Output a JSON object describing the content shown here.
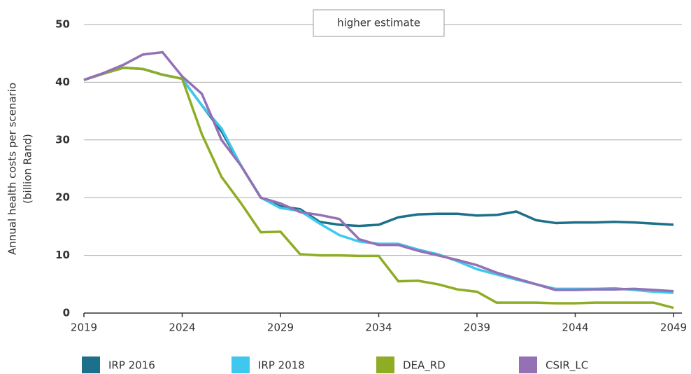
{
  "chart_data": {
    "type": "line",
    "ylabel": [
      "Annual health costs per scenario",
      "(billion Rand)"
    ],
    "annotation": "higher estimate",
    "x": [
      2019,
      2020,
      2021,
      2022,
      2023,
      2024,
      2025,
      2026,
      2027,
      2028,
      2029,
      2030,
      2031,
      2032,
      2033,
      2034,
      2035,
      2036,
      2037,
      2038,
      2039,
      2040,
      2041,
      2042,
      2043,
      2044,
      2045,
      2046,
      2047,
      2048,
      2049
    ],
    "xlim": [
      2019,
      2049
    ],
    "xticks": [
      2019,
      2024,
      2029,
      2034,
      2039,
      2044,
      2049
    ],
    "ylim": [
      0,
      50
    ],
    "yticks": [
      0,
      10,
      20,
      30,
      40,
      50
    ],
    "grid": true,
    "legend": "bottom",
    "series": [
      {
        "name": "IRP 2016",
        "color": "#1d7089",
        "values": [
          40.4,
          41.5,
          42.5,
          42.3,
          41.3,
          40.6,
          36,
          31.5,
          25.5,
          20,
          18.5,
          18,
          15.8,
          15.3,
          15.1,
          15.3,
          16.6,
          17.1,
          17.2,
          17.2,
          16.9,
          17,
          17.6,
          16.1,
          15.6,
          15.7,
          15.7,
          15.8,
          15.7,
          15.5,
          15.3
        ]
      },
      {
        "name": "IRP 2018",
        "color": "#3ec8f0",
        "values": [
          40.4,
          41.5,
          42.5,
          42.3,
          41.3,
          40.6,
          36,
          32,
          25.5,
          20,
          18.2,
          17.7,
          15.5,
          13.5,
          12.4,
          12,
          12,
          11,
          10.2,
          9,
          7.6,
          6.7,
          5.8,
          5,
          4.2,
          4.2,
          4.2,
          4.3,
          4,
          3.7,
          3.5
        ]
      },
      {
        "name": "DEA_RD",
        "color": "#8ead25",
        "values": [
          40.4,
          41.5,
          42.5,
          42.3,
          41.3,
          40.6,
          31,
          23.6,
          19,
          14,
          14.1,
          10.2,
          10,
          10,
          9.9,
          9.9,
          5.5,
          5.6,
          5,
          4.1,
          3.7,
          1.8,
          1.8,
          1.8,
          1.7,
          1.7,
          1.8,
          1.8,
          1.8,
          1.8,
          0.9
        ]
      },
      {
        "name": "CSIR_LC",
        "color": "#9470b5",
        "values": [
          40.4,
          41.6,
          43,
          44.8,
          45.2,
          41,
          38,
          30,
          25.5,
          20,
          19,
          17.5,
          17,
          16.3,
          12.8,
          11.8,
          11.8,
          10.8,
          10,
          9.2,
          8.3,
          7,
          6,
          5,
          4,
          4,
          4.1,
          4.1,
          4.2,
          4,
          3.8
        ]
      }
    ]
  }
}
